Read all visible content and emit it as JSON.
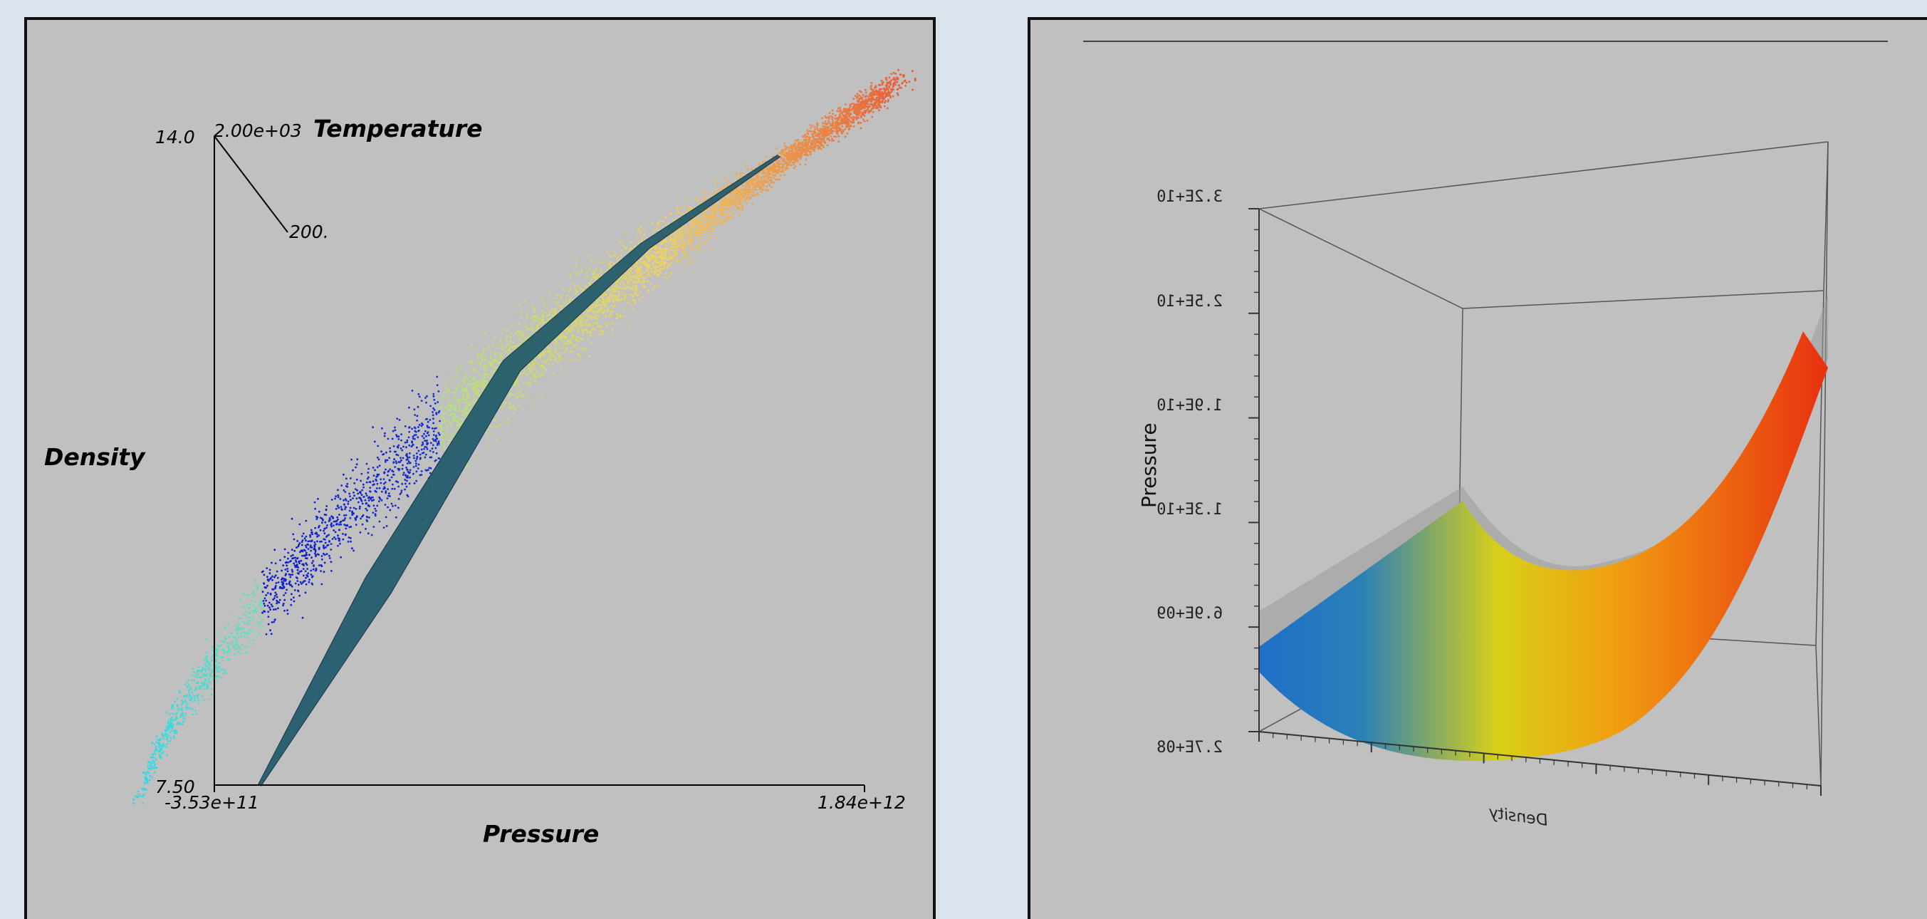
{
  "colors": {
    "background": "#dde3ec",
    "viewport": "#c0c0c0",
    "border": "#111111"
  },
  "chart_data": [
    {
      "type": "scatter",
      "xlabel": "Pressure",
      "ylabel": "Density",
      "zlabel": "Temperature",
      "xlim": [
        -353000000000,
        1840000000000
      ],
      "ylim": [
        7.5,
        14.0
      ],
      "zlim": [
        200,
        2000
      ],
      "x_tick_labels": [
        "-3.53e+11",
        "1.84e+12"
      ],
      "y_tick_labels": [
        "7.50",
        "14.0"
      ],
      "z_tick_labels": [
        "2.00e+03",
        "200."
      ],
      "grid": false,
      "colormap": [
        "#1010c8",
        "#30d8e8",
        "#a8e878",
        "#f0d060",
        "#e85030"
      ],
      "surface": {
        "color": "#1f5a6a",
        "points": [
          {
            "x": -200000000000,
            "y": 7.5
          },
          {
            "x": 200000000000,
            "y": 9.5
          },
          {
            "x": 650000000000,
            "y": 11.7
          },
          {
            "x": 1100000000000,
            "y": 12.9
          },
          {
            "x": 1550000000000,
            "y": 13.8
          }
        ]
      }
    },
    {
      "type": "area",
      "xlabel": "Density",
      "ylabel": "Pressure",
      "y_tick_labels": [
        "2.7E+08",
        "6.9E+09",
        "1.3E+10",
        "1.9E+10",
        "2.5E+10",
        "3.2E+10"
      ],
      "ylim": [
        270000000,
        32000000000
      ],
      "grid": false,
      "colormap": [
        "#1f6fc8",
        "#d8d018",
        "#f0a010",
        "#e83010"
      ],
      "series": [
        {
          "values": [
            5700000000,
            3100000000,
            1300000000,
            2400000000,
            7400000000,
            15700000000,
            21000000000
          ]
        }
      ]
    }
  ]
}
